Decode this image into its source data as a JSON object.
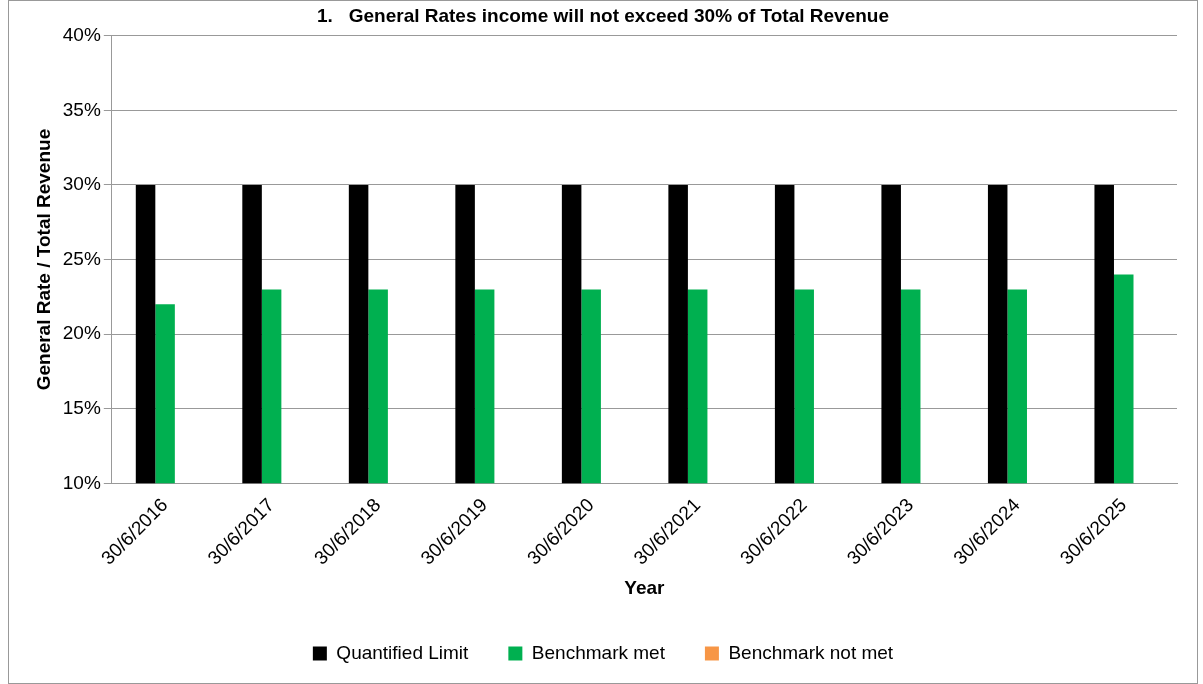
{
  "chart_data": {
    "type": "bar",
    "title": "1.   General Rates income will not exceed 30% of Total Revenue",
    "xlabel": "Year",
    "ylabel": "General Rate / Total Revenue",
    "categories": [
      "30/6/2016",
      "30/6/2017",
      "30/6/2018",
      "30/6/2019",
      "30/6/2020",
      "30/6/2021",
      "30/6/2022",
      "30/6/2023",
      "30/6/2024",
      "30/6/2025"
    ],
    "series": [
      {
        "name": "Quantified Limit",
        "color": "#000000",
        "values": [
          30,
          30,
          30,
          30,
          30,
          30,
          30,
          30,
          30,
          30
        ]
      },
      {
        "name": "Benchmark met",
        "color": "#00b050",
        "values": [
          22,
          23,
          23,
          23,
          23,
          23,
          23,
          23,
          23,
          24
        ]
      },
      {
        "name": "Benchmark not met",
        "color": "#f79646",
        "values": [
          null,
          null,
          null,
          null,
          null,
          null,
          null,
          null,
          null,
          null
        ]
      }
    ],
    "ylim": [
      10,
      40
    ],
    "yticks": [
      {
        "value": 10,
        "label": "10%"
      },
      {
        "value": 15,
        "label": "15%"
      },
      {
        "value": 20,
        "label": "20%"
      },
      {
        "value": 25,
        "label": "25%"
      },
      {
        "value": 30,
        "label": "30%"
      },
      {
        "value": 35,
        "label": "35%"
      },
      {
        "value": 40,
        "label": "40%"
      }
    ],
    "grid": "y",
    "legend": "bottom"
  }
}
